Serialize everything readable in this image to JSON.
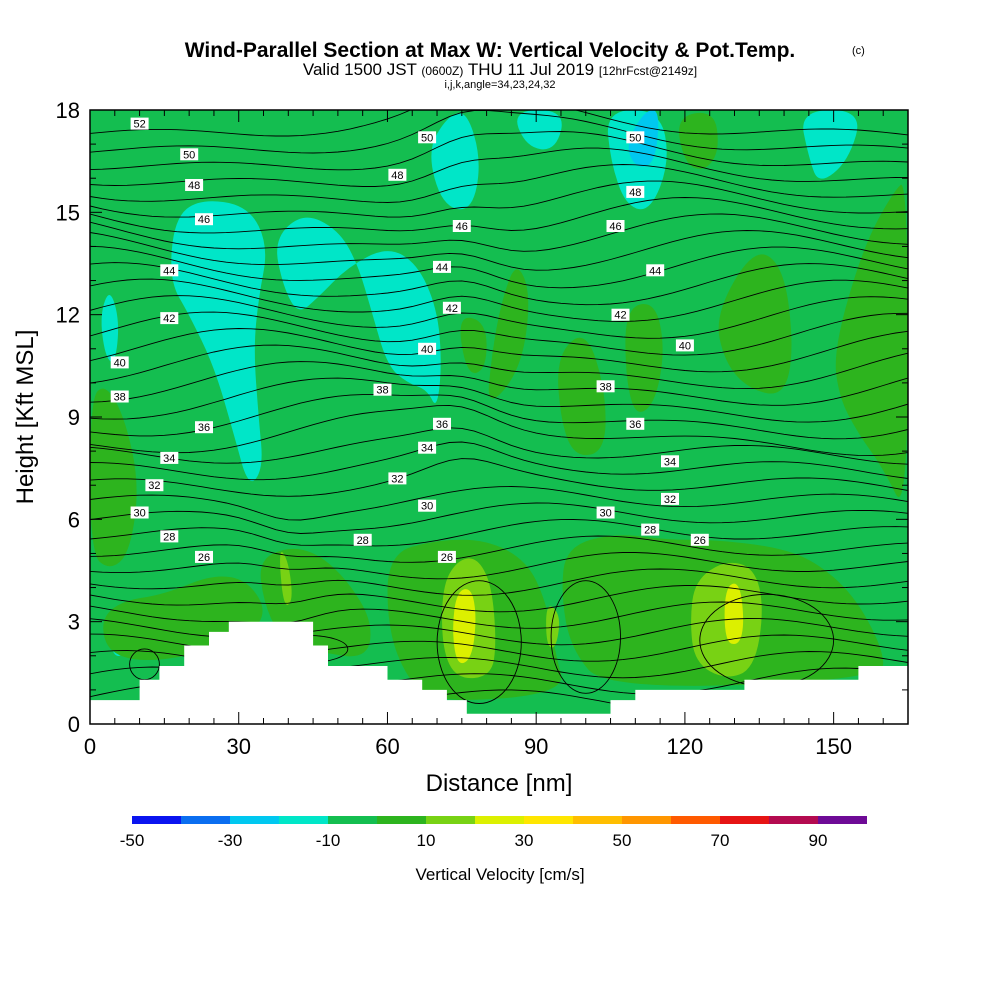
{
  "header": {
    "title": "Wind-Parallel Section at Max W: Vertical Velocity & Pot.Temp.",
    "copyright": "(c)",
    "valid_prefix": "Valid 1500 JST",
    "valid_utc": "(0600Z)",
    "valid_date": "THU 11 Jul 2019",
    "forecast": "[12hrFcst@2149z]",
    "indices": "i,j,k,angle=34,23,24,32"
  },
  "chart_data": {
    "type": "heatmap",
    "xlabel": "Distance [nm]",
    "ylabel": "Height [Kft MSL]",
    "xlim": [
      0,
      165
    ],
    "ylim": [
      0,
      18
    ],
    "x_ticks": [
      "0",
      "30",
      "60",
      "90",
      "120",
      "150"
    ],
    "y_ticks": [
      "0",
      "3",
      "6",
      "9",
      "12",
      "15",
      "18"
    ],
    "colorbar": {
      "label": "Vertical Velocity [cm/s]",
      "tick_labels": [
        "-50",
        "-30",
        "-10",
        "10",
        "30",
        "50",
        "70",
        "90"
      ],
      "levels": [
        -50,
        -40,
        -30,
        -20,
        -10,
        0,
        10,
        20,
        30,
        40,
        50,
        60,
        70,
        80,
        90,
        100
      ],
      "colors": [
        "#0a14f0",
        "#0a6ef0",
        "#00c8f0",
        "#00e6c8",
        "#14be50",
        "#2db41e",
        "#78d214",
        "#dcf000",
        "#ffe600",
        "#ffbe00",
        "#ff9600",
        "#ff5a00",
        "#e61414",
        "#b40a50",
        "#6e0a96"
      ]
    },
    "background_color": "#14be50",
    "terrain": [
      [
        0,
        0.7
      ],
      [
        10,
        0.7
      ],
      [
        10,
        1.3
      ],
      [
        14,
        1.3
      ],
      [
        14,
        1.7
      ],
      [
        19,
        1.7
      ],
      [
        19,
        2.3
      ],
      [
        24,
        2.3
      ],
      [
        24,
        2.7
      ],
      [
        28,
        2.7
      ],
      [
        28,
        3.0
      ],
      [
        45,
        3.0
      ],
      [
        45,
        2.3
      ],
      [
        48,
        2.3
      ],
      [
        48,
        1.7
      ],
      [
        60,
        1.7
      ],
      [
        60,
        1.3
      ],
      [
        67,
        1.3
      ],
      [
        67,
        1.0
      ],
      [
        72,
        1.0
      ],
      [
        72,
        0.7
      ],
      [
        76,
        0.7
      ],
      [
        76,
        0.3
      ],
      [
        105,
        0.3
      ],
      [
        105,
        0.7
      ],
      [
        110,
        0.7
      ],
      [
        110,
        1.0
      ],
      [
        132,
        1.0
      ],
      [
        132,
        1.3
      ],
      [
        155,
        1.3
      ],
      [
        155,
        1.7
      ],
      [
        165,
        1.7
      ],
      [
        165,
        0
      ],
      [
        0,
        0
      ]
    ],
    "w_regions": [
      {
        "value": -15,
        "points": [
          [
            17,
            14.8
          ],
          [
            22,
            15.4
          ],
          [
            32,
            15.2
          ],
          [
            36,
            14.0
          ],
          [
            34,
            12.5
          ],
          [
            33,
            11.0
          ],
          [
            34,
            9.0
          ],
          [
            35,
            7.5
          ],
          [
            32,
            6.9
          ],
          [
            29,
            8.5
          ],
          [
            25,
            10.5
          ],
          [
            20,
            12.0
          ],
          [
            16,
            13.0
          ]
        ]
      },
      {
        "value": -15,
        "points": [
          [
            37,
            14.2
          ],
          [
            43,
            15.0
          ],
          [
            50,
            14.5
          ],
          [
            54,
            13.5
          ],
          [
            57,
            12.0
          ],
          [
            60,
            10.5
          ],
          [
            64,
            10.0
          ],
          [
            68,
            9.8
          ],
          [
            70,
            9.2
          ],
          [
            71,
            10.6
          ],
          [
            70,
            12.2
          ],
          [
            66,
            13.5
          ],
          [
            60,
            14.0
          ],
          [
            52,
            13.4
          ],
          [
            46,
            12.5
          ],
          [
            42,
            12.0
          ],
          [
            39,
            12.8
          ]
        ]
      },
      {
        "value": -15,
        "points": [
          [
            68,
            16.8
          ],
          [
            72,
            17.8
          ],
          [
            76,
            18.0
          ],
          [
            79,
            16.5
          ],
          [
            77,
            15.0
          ],
          [
            71,
            15.2
          ]
        ]
      },
      {
        "value": -15,
        "points": [
          [
            85,
            18.0
          ],
          [
            96,
            18.0
          ],
          [
            94,
            16.8
          ],
          [
            88,
            16.9
          ]
        ]
      },
      {
        "value": -15,
        "points": [
          [
            104,
            18.0
          ],
          [
            115,
            18.0
          ],
          [
            117,
            16.5
          ],
          [
            113,
            15.0
          ],
          [
            108,
            15.2
          ],
          [
            105,
            16.5
          ]
        ]
      },
      {
        "value": -25,
        "points": [
          [
            108,
            17.0
          ],
          [
            112,
            18.0
          ],
          [
            115,
            18.0
          ],
          [
            114,
            16.4
          ],
          [
            110,
            16.3
          ]
        ]
      },
      {
        "value": -15,
        "points": [
          [
            143,
            18.0
          ],
          [
            156,
            18.0
          ],
          [
            153,
            16.5
          ],
          [
            147,
            15.8
          ],
          [
            145,
            16.6
          ]
        ]
      },
      {
        "value": -15,
        "points": [
          [
            2,
            12.0
          ],
          [
            4,
            12.8
          ],
          [
            6,
            11.8
          ],
          [
            5,
            10.5
          ],
          [
            3,
            10.8
          ]
        ]
      },
      {
        "value": -15,
        "points": [
          [
            4,
            2.2
          ],
          [
            6,
            2.9
          ],
          [
            8,
            2.4
          ],
          [
            6,
            1.9
          ]
        ]
      },
      {
        "value": 5,
        "points": [
          [
            0,
            9.5
          ],
          [
            3,
            10.0
          ],
          [
            7,
            9.0
          ],
          [
            10,
            7.0
          ],
          [
            8,
            5.0
          ],
          [
            4,
            4.5
          ],
          [
            0,
            5.0
          ]
        ]
      },
      {
        "value": 5,
        "points": [
          [
            2,
            3.0
          ],
          [
            6,
            3.6
          ],
          [
            15,
            3.8
          ],
          [
            25,
            4.4
          ],
          [
            32,
            4.2
          ],
          [
            36,
            3.2
          ],
          [
            30,
            2.4
          ],
          [
            14,
            1.8
          ],
          [
            4,
            2.0
          ]
        ]
      },
      {
        "value": 5,
        "points": [
          [
            34,
            4.8
          ],
          [
            40,
            5.2
          ],
          [
            46,
            5.0
          ],
          [
            52,
            4.2
          ],
          [
            57,
            3.0
          ],
          [
            56,
            1.9
          ],
          [
            46,
            2.1
          ],
          [
            38,
            2.6
          ],
          [
            35,
            3.6
          ]
        ]
      },
      {
        "value": 5,
        "points": [
          [
            60,
            5.0
          ],
          [
            70,
            5.4
          ],
          [
            80,
            5.4
          ],
          [
            88,
            4.8
          ],
          [
            92,
            3.6
          ],
          [
            94,
            2.0
          ],
          [
            96,
            0.9
          ],
          [
            70,
            0.6
          ],
          [
            64,
            1.3
          ],
          [
            60,
            2.8
          ]
        ]
      },
      {
        "value": 5,
        "points": [
          [
            96,
            5.2
          ],
          [
            106,
            5.6
          ],
          [
            116,
            5.4
          ],
          [
            126,
            5.4
          ],
          [
            138,
            5.2
          ],
          [
            146,
            4.8
          ],
          [
            154,
            3.8
          ],
          [
            160,
            2.2
          ],
          [
            160,
            1.3
          ],
          [
            104,
            1.0
          ],
          [
            97,
            2.2
          ],
          [
            95,
            3.8
          ]
        ]
      },
      {
        "value": 5,
        "points": [
          [
            150,
            11.0
          ],
          [
            156,
            14.0
          ],
          [
            162,
            15.6
          ],
          [
            165,
            16.0
          ],
          [
            165,
            6.0
          ],
          [
            160,
            7.5
          ],
          [
            155,
            8.5
          ],
          [
            151,
            9.6
          ]
        ]
      },
      {
        "value": 5,
        "points": [
          [
            126,
            12.0
          ],
          [
            134,
            14.0
          ],
          [
            140,
            13.4
          ],
          [
            142,
            11.0
          ],
          [
            140,
            9.6
          ],
          [
            133,
            9.8
          ],
          [
            128,
            10.6
          ]
        ]
      },
      {
        "value": 5,
        "points": [
          [
            80,
            9.2
          ],
          [
            87,
            10.4
          ],
          [
            89,
            12.6
          ],
          [
            86,
            13.6
          ],
          [
            83,
            12.4
          ],
          [
            81,
            10.8
          ]
        ]
      },
      {
        "value": 5,
        "points": [
          [
            94,
            10.8
          ],
          [
            100,
            11.6
          ],
          [
            104,
            9.8
          ],
          [
            104,
            8.0
          ],
          [
            98,
            7.8
          ],
          [
            95,
            8.8
          ]
        ]
      },
      {
        "value": 5,
        "points": [
          [
            108,
            12.2
          ],
          [
            114,
            12.4
          ],
          [
            116,
            11.0
          ],
          [
            114,
            9.4
          ],
          [
            110,
            9.0
          ],
          [
            108,
            10.2
          ]
        ]
      },
      {
        "value": 5,
        "points": [
          [
            118,
            17.8
          ],
          [
            126,
            18.0
          ],
          [
            127,
            16.8
          ],
          [
            124,
            16.2
          ],
          [
            120,
            16.4
          ]
        ]
      },
      {
        "value": 5,
        "points": [
          [
            74,
            12.0
          ],
          [
            80,
            11.8
          ],
          [
            80,
            10.4
          ],
          [
            76,
            10.2
          ]
        ]
      },
      {
        "value": 15,
        "points": [
          [
            71,
            4.0
          ],
          [
            74,
            4.8
          ],
          [
            78,
            4.9
          ],
          [
            81,
            4.1
          ],
          [
            82,
            2.4
          ],
          [
            81,
            1.4
          ],
          [
            74,
            1.3
          ],
          [
            71,
            2.2
          ]
        ]
      },
      {
        "value": 15,
        "points": [
          [
            122,
            4.2
          ],
          [
            128,
            4.8
          ],
          [
            134,
            4.6
          ],
          [
            136,
            3.4
          ],
          [
            134,
            1.6
          ],
          [
            128,
            1.3
          ],
          [
            122,
            1.8
          ],
          [
            121,
            3.0
          ]
        ]
      },
      {
        "value": 15,
        "points": [
          [
            38,
            5.2
          ],
          [
            40,
            4.8
          ],
          [
            41,
            3.6
          ],
          [
            39,
            3.4
          ]
        ]
      },
      {
        "value": 15,
        "points": [
          [
            92,
            3.6
          ],
          [
            95,
            3.2
          ],
          [
            94,
            2.2
          ],
          [
            92,
            2.3
          ]
        ]
      },
      {
        "value": 25,
        "points": [
          [
            74,
            3.9
          ],
          [
            77,
            4.0
          ],
          [
            78,
            3.1
          ],
          [
            77,
            1.9
          ],
          [
            74,
            1.7
          ],
          [
            73,
            2.8
          ]
        ]
      },
      {
        "value": 25,
        "points": [
          [
            128,
            4.0
          ],
          [
            131,
            4.2
          ],
          [
            132,
            3.0
          ],
          [
            131,
            2.3
          ],
          [
            128,
            2.4
          ]
        ]
      }
    ],
    "theta_contours": [
      {
        "value": 26,
        "label": "26",
        "base_height": 4.9
      },
      {
        "value": 28,
        "label": "28",
        "base_height": 5.5
      },
      {
        "value": 30,
        "label": "30",
        "base_height": 6.2
      },
      {
        "value": 32,
        "label": "32",
        "base_height": 7.0
      },
      {
        "value": 34,
        "label": "34",
        "base_height": 7.8
      },
      {
        "value": 36,
        "label": "36",
        "base_height": 8.7
      },
      {
        "value": 38,
        "label": "38",
        "base_height": 9.6
      },
      {
        "value": 40,
        "label": "40",
        "base_height": 10.6
      },
      {
        "value": 42,
        "label": "42",
        "base_height": 11.8
      },
      {
        "value": 44,
        "label": "44",
        "base_height": 13.2
      },
      {
        "value": 46,
        "label": "46",
        "base_height": 14.6
      },
      {
        "value": 48,
        "label": "48",
        "base_height": 15.8
      },
      {
        "value": 50,
        "label": "50",
        "base_height": 16.7
      },
      {
        "value": 52,
        "label": "52",
        "base_height": 17.6
      }
    ],
    "theta_labels": [
      {
        "text": "52",
        "x": 10,
        "y": 17.6
      },
      {
        "text": "50",
        "x": 20,
        "y": 16.7
      },
      {
        "text": "48",
        "x": 21,
        "y": 15.8
      },
      {
        "text": "46",
        "x": 23,
        "y": 14.8
      },
      {
        "text": "44",
        "x": 16,
        "y": 13.3
      },
      {
        "text": "42",
        "x": 16,
        "y": 11.9
      },
      {
        "text": "40",
        "x": 6,
        "y": 10.6
      },
      {
        "text": "38",
        "x": 6,
        "y": 9.6
      },
      {
        "text": "36",
        "x": 23,
        "y": 8.7
      },
      {
        "text": "34",
        "x": 16,
        "y": 7.8
      },
      {
        "text": "32",
        "x": 13,
        "y": 7.0
      },
      {
        "text": "30",
        "x": 10,
        "y": 6.2
      },
      {
        "text": "28",
        "x": 16,
        "y": 5.5
      },
      {
        "text": "26",
        "x": 23,
        "y": 4.9
      },
      {
        "text": "50",
        "x": 68,
        "y": 17.2
      },
      {
        "text": "48",
        "x": 62,
        "y": 16.1
      },
      {
        "text": "46",
        "x": 75,
        "y": 14.6
      },
      {
        "text": "44",
        "x": 71,
        "y": 13.4
      },
      {
        "text": "42",
        "x": 73,
        "y": 12.2
      },
      {
        "text": "40",
        "x": 68,
        "y": 11.0
      },
      {
        "text": "38",
        "x": 59,
        "y": 9.8
      },
      {
        "text": "36",
        "x": 71,
        "y": 8.8
      },
      {
        "text": "34",
        "x": 68,
        "y": 8.1
      },
      {
        "text": "32",
        "x": 62,
        "y": 7.2
      },
      {
        "text": "30",
        "x": 68,
        "y": 6.4
      },
      {
        "text": "28",
        "x": 55,
        "y": 5.4
      },
      {
        "text": "26",
        "x": 72,
        "y": 4.9
      },
      {
        "text": "50",
        "x": 110,
        "y": 17.2
      },
      {
        "text": "48",
        "x": 110,
        "y": 15.6
      },
      {
        "text": "46",
        "x": 106,
        "y": 14.6
      },
      {
        "text": "44",
        "x": 114,
        "y": 13.3
      },
      {
        "text": "42",
        "x": 107,
        "y": 12.0
      },
      {
        "text": "40",
        "x": 120,
        "y": 11.1
      },
      {
        "text": "38",
        "x": 104,
        "y": 9.9
      },
      {
        "text": "36",
        "x": 110,
        "y": 8.8
      },
      {
        "text": "34",
        "x": 117,
        "y": 7.7
      },
      {
        "text": "32",
        "x": 117,
        "y": 6.6
      },
      {
        "text": "30",
        "x": 104,
        "y": 6.2
      },
      {
        "text": "28",
        "x": 113,
        "y": 5.7
      },
      {
        "text": "26",
        "x": 123,
        "y": 5.4
      }
    ]
  }
}
